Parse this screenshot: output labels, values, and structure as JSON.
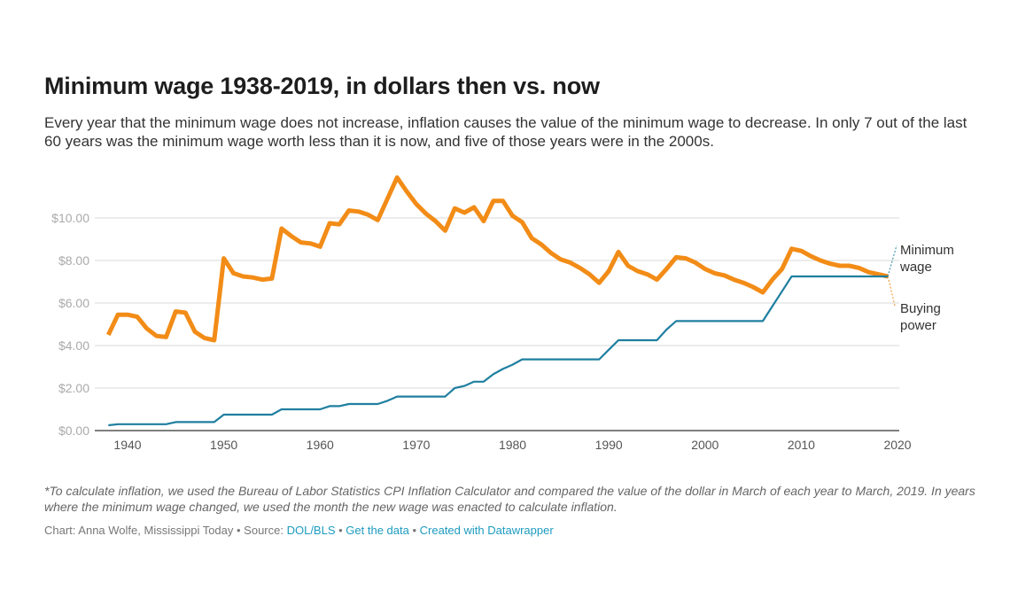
{
  "title": "Minimum wage 1938-2019, in dollars then vs. now",
  "subtitle": "Every year that the minimum wage does not increase, inflation causes the value of the minimum wage to decrease. In only 7 out of the last 60 years was the minimum wage worth less than it is now, and five of those years were in the 2000s.",
  "note": "*To calculate inflation, we used the Bureau of Labor Statistics CPI Inflation Calculator and compared the value of the dollar in March of each year to March, 2019. In years where the minimum wage changed, we used the month the new wage was enacted to calculate inflation.",
  "footer": {
    "credit": "Chart: Anna Wolfe, Mississippi Today • Source: ",
    "source": "DOL/BLS",
    "sep1": " • ",
    "get_data": "Get the data",
    "sep2": " • ",
    "created": "Created with Datawrapper"
  },
  "chart_data": {
    "type": "line",
    "xlim": [
      1938,
      2019
    ],
    "ylim": [
      0,
      12
    ],
    "yticks": [
      0,
      2,
      4,
      6,
      8,
      10
    ],
    "ytick_labels": [
      "$0.00",
      "$2.00",
      "$4.00",
      "$6.00",
      "$8.00",
      "$10.00"
    ],
    "xticks": [
      1940,
      1950,
      1960,
      1970,
      1980,
      1990,
      2000,
      2010,
      2020
    ],
    "xtick_labels": [
      "1940",
      "1950",
      "1960",
      "1970",
      "1980",
      "1990",
      "2000",
      "2010",
      "2020"
    ],
    "grid": true,
    "series": [
      {
        "name": "Minimum wage",
        "label": [
          "Minimum",
          "wage"
        ],
        "color": "#1f7fa0",
        "points": [
          [
            1938,
            0.25
          ],
          [
            1939,
            0.3
          ],
          [
            1944,
            0.3
          ],
          [
            1945,
            0.4
          ],
          [
            1949,
            0.4
          ],
          [
            1950,
            0.75
          ],
          [
            1955,
            0.75
          ],
          [
            1956,
            1.0
          ],
          [
            1960,
            1.0
          ],
          [
            1961,
            1.15
          ],
          [
            1962,
            1.15
          ],
          [
            1963,
            1.25
          ],
          [
            1966,
            1.25
          ],
          [
            1967,
            1.4
          ],
          [
            1968,
            1.6
          ],
          [
            1973,
            1.6
          ],
          [
            1974,
            2.0
          ],
          [
            1975,
            2.1
          ],
          [
            1976,
            2.3
          ],
          [
            1977,
            2.3
          ],
          [
            1978,
            2.65
          ],
          [
            1979,
            2.9
          ],
          [
            1980,
            3.1
          ],
          [
            1981,
            3.35
          ],
          [
            1989,
            3.35
          ],
          [
            1990,
            3.8
          ],
          [
            1991,
            4.25
          ],
          [
            1995,
            4.25
          ],
          [
            1996,
            4.75
          ],
          [
            1997,
            5.15
          ],
          [
            2006,
            5.15
          ],
          [
            2007,
            5.85
          ],
          [
            2008,
            6.55
          ],
          [
            2009,
            7.25
          ],
          [
            2019,
            7.25
          ]
        ]
      },
      {
        "name": "Buying power",
        "label": [
          "Buying",
          "power"
        ],
        "color": "#f28c17",
        "points": [
          [
            1938,
            4.5
          ],
          [
            1939,
            5.45
          ],
          [
            1940,
            5.45
          ],
          [
            1941,
            5.35
          ],
          [
            1942,
            4.8
          ],
          [
            1943,
            4.45
          ],
          [
            1944,
            4.4
          ],
          [
            1945,
            5.6
          ],
          [
            1946,
            5.55
          ],
          [
            1947,
            4.65
          ],
          [
            1948,
            4.35
          ],
          [
            1949,
            4.25
          ],
          [
            1950,
            8.1
          ],
          [
            1951,
            7.4
          ],
          [
            1952,
            7.25
          ],
          [
            1953,
            7.2
          ],
          [
            1954,
            7.1
          ],
          [
            1955,
            7.15
          ],
          [
            1956,
            9.5
          ],
          [
            1957,
            9.15
          ],
          [
            1958,
            8.85
          ],
          [
            1959,
            8.8
          ],
          [
            1960,
            8.65
          ],
          [
            1961,
            9.75
          ],
          [
            1962,
            9.7
          ],
          [
            1963,
            10.35
          ],
          [
            1964,
            10.3
          ],
          [
            1965,
            10.15
          ],
          [
            1966,
            9.9
          ],
          [
            1967,
            10.9
          ],
          [
            1968,
            11.9
          ],
          [
            1969,
            11.25
          ],
          [
            1970,
            10.65
          ],
          [
            1971,
            10.2
          ],
          [
            1972,
            9.85
          ],
          [
            1973,
            9.4
          ],
          [
            1974,
            10.45
          ],
          [
            1975,
            10.25
          ],
          [
            1976,
            10.5
          ],
          [
            1977,
            9.85
          ],
          [
            1978,
            10.8
          ],
          [
            1979,
            10.8
          ],
          [
            1980,
            10.1
          ],
          [
            1981,
            9.8
          ],
          [
            1982,
            9.05
          ],
          [
            1983,
            8.75
          ],
          [
            1984,
            8.35
          ],
          [
            1985,
            8.05
          ],
          [
            1986,
            7.9
          ],
          [
            1987,
            7.65
          ],
          [
            1988,
            7.35
          ],
          [
            1989,
            6.95
          ],
          [
            1990,
            7.5
          ],
          [
            1991,
            8.4
          ],
          [
            1992,
            7.75
          ],
          [
            1993,
            7.5
          ],
          [
            1994,
            7.35
          ],
          [
            1995,
            7.1
          ],
          [
            1996,
            7.6
          ],
          [
            1997,
            8.15
          ],
          [
            1998,
            8.1
          ],
          [
            1999,
            7.9
          ],
          [
            2000,
            7.6
          ],
          [
            2001,
            7.4
          ],
          [
            2002,
            7.3
          ],
          [
            2003,
            7.1
          ],
          [
            2004,
            6.95
          ],
          [
            2005,
            6.75
          ],
          [
            2006,
            6.5
          ],
          [
            2007,
            7.1
          ],
          [
            2008,
            7.6
          ],
          [
            2009,
            8.55
          ],
          [
            2010,
            8.45
          ],
          [
            2011,
            8.2
          ],
          [
            2012,
            8.0
          ],
          [
            2013,
            7.85
          ],
          [
            2014,
            7.75
          ],
          [
            2015,
            7.75
          ],
          [
            2016,
            7.65
          ],
          [
            2017,
            7.45
          ],
          [
            2018,
            7.35
          ],
          [
            2019,
            7.25
          ]
        ]
      }
    ]
  }
}
